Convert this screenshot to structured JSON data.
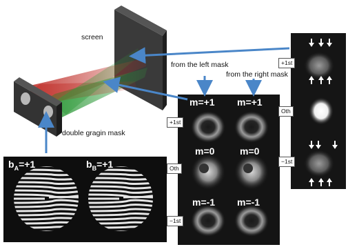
{
  "labels": {
    "screen": "screen",
    "double_mask": "double gragin mask",
    "from_left": "from the left mask",
    "from_right": "from the right mask"
  },
  "masks": {
    "a_letter": "b",
    "a_sub": "A",
    "a_val": "=+1",
    "b_letter": "b",
    "b_sub": "B",
    "b_val": "=+1"
  },
  "grid": {
    "rows": [
      "+1st",
      "Oth",
      "−1st"
    ],
    "left_col": [
      "m=+1",
      "m=0",
      "m=-1"
    ],
    "right_col": [
      "m=+1",
      "m=0",
      "m=-1"
    ]
  },
  "panel": {
    "rows": [
      "+1st",
      "Oth",
      "−1st"
    ]
  },
  "colors": {
    "arrow": "#4a86c8",
    "beam_red": "#c0302a",
    "beam_green": "#2f9a3a",
    "screen": "#2a2a2a"
  },
  "icons": [
    "arrow-down-icon",
    "arrow-up-icon"
  ]
}
